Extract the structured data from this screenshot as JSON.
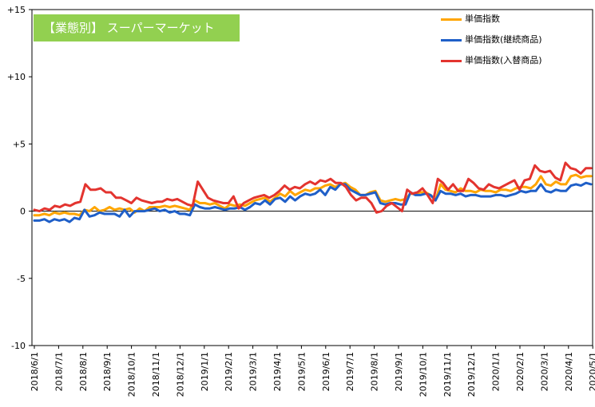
{
  "title": "【業態別】 スーパーマーケット",
  "chart_data": {
    "type": "line",
    "title": "【業態別】 スーパーマーケット",
    "xlabel": "",
    "ylabel": "",
    "ylim": [
      -10,
      15
    ],
    "yticks": [
      {
        "value": 15,
        "label": "+15"
      },
      {
        "value": 10,
        "label": "+10"
      },
      {
        "value": 5,
        "label": "+5"
      },
      {
        "value": 0,
        "label": "0"
      },
      {
        "value": -5,
        "label": "-5"
      },
      {
        "value": -10,
        "label": "-10"
      }
    ],
    "x_tick_labels": [
      "2018/6/1",
      "2018/7/1",
      "2018/8/1",
      "2018/9/1",
      "2018/10/1",
      "2018/11/1",
      "2018/12/1",
      "2019/1/1",
      "2019/2/1",
      "2019/3/1",
      "2019/4/1",
      "2019/5/1",
      "2019/6/1",
      "2019/7/1",
      "2019/8/1",
      "2019/9/1",
      "2019/10/1",
      "2019/11/1",
      "2019/12/1",
      "2020/1/1",
      "2020/2/1",
      "2020/3/1",
      "2020/4/1",
      "2020/5/1"
    ],
    "points_per_month": 4.3,
    "grid": false,
    "legend_position": "top-right",
    "series": [
      {
        "name": "単価指数",
        "color": "#ffa500",
        "values": [
          -0.3,
          -0.3,
          -0.2,
          -0.3,
          -0.1,
          -0.2,
          -0.1,
          -0.2,
          -0.2,
          -0.3,
          0.1,
          0.0,
          0.3,
          0.0,
          0.1,
          0.3,
          0.1,
          0.2,
          0.1,
          0.2,
          -0.1,
          0.2,
          0.0,
          0.3,
          0.3,
          0.3,
          0.4,
          0.3,
          0.4,
          0.3,
          0.2,
          0.1,
          0.8,
          0.6,
          0.6,
          0.5,
          0.6,
          0.4,
          0.2,
          0.5,
          0.4,
          0.5,
          0.4,
          0.6,
          0.8,
          0.9,
          1.0,
          0.7,
          1.0,
          1.3,
          1.1,
          1.5,
          1.2,
          1.4,
          1.6,
          1.5,
          1.7,
          1.7,
          1.9,
          2.0,
          1.8,
          2.0,
          2.1,
          1.8,
          1.6,
          1.2,
          1.2,
          1.4,
          1.5,
          0.8,
          0.7,
          0.8,
          0.9,
          0.8,
          0.9,
          1.3,
          1.3,
          1.4,
          1.4,
          1.2,
          0.8,
          2.0,
          1.6,
          1.5,
          1.4,
          1.7,
          1.5,
          1.5,
          1.4,
          1.6,
          1.5,
          1.5,
          1.4,
          1.6,
          1.6,
          1.5,
          1.7,
          1.8,
          1.8,
          1.7,
          2.0,
          2.6,
          2.0,
          1.9,
          2.2,
          2.0,
          2.0,
          2.6,
          2.7,
          2.5,
          2.6,
          2.6
        ]
      },
      {
        "name": "単価指数(継続商品)",
        "color": "#1f5fc8",
        "values": [
          -0.7,
          -0.7,
          -0.6,
          -0.8,
          -0.6,
          -0.7,
          -0.6,
          -0.8,
          -0.5,
          -0.6,
          0.1,
          -0.4,
          -0.3,
          -0.1,
          -0.2,
          -0.2,
          -0.2,
          -0.4,
          0.1,
          -0.4,
          0.0,
          0.0,
          0.0,
          0.1,
          0.2,
          0.0,
          0.1,
          -0.1,
          0.0,
          -0.2,
          -0.2,
          -0.3,
          0.5,
          0.3,
          0.2,
          0.2,
          0.3,
          0.2,
          0.1,
          0.2,
          0.2,
          0.3,
          0.1,
          0.3,
          0.6,
          0.5,
          0.8,
          0.5,
          0.9,
          1.0,
          0.7,
          1.1,
          0.8,
          1.1,
          1.3,
          1.2,
          1.3,
          1.6,
          1.2,
          1.8,
          1.6,
          2.0,
          2.0,
          1.6,
          1.4,
          1.2,
          1.2,
          1.3,
          1.4,
          0.6,
          0.5,
          0.6,
          0.6,
          0.5,
          0.5,
          1.4,
          1.2,
          1.2,
          1.3,
          1.2,
          0.8,
          1.5,
          1.3,
          1.3,
          1.2,
          1.3,
          1.1,
          1.2,
          1.2,
          1.1,
          1.1,
          1.1,
          1.2,
          1.2,
          1.1,
          1.2,
          1.3,
          1.5,
          1.4,
          1.5,
          1.5,
          2.0,
          1.5,
          1.4,
          1.6,
          1.5,
          1.5,
          1.9,
          2.0,
          1.9,
          2.1,
          2.0
        ]
      },
      {
        "name": "単価指数(入替商品)",
        "color": "#e3342f",
        "values": [
          0.1,
          0.0,
          0.2,
          0.1,
          0.4,
          0.3,
          0.5,
          0.4,
          0.6,
          0.7,
          2.0,
          1.6,
          1.6,
          1.7,
          1.4,
          1.4,
          1.0,
          1.0,
          0.8,
          0.6,
          1.0,
          0.8,
          0.7,
          0.6,
          0.7,
          0.7,
          0.9,
          0.8,
          0.9,
          0.7,
          0.5,
          0.4,
          2.2,
          1.6,
          1.0,
          0.8,
          0.7,
          0.6,
          0.6,
          1.1,
          0.2,
          0.6,
          0.8,
          1.0,
          1.1,
          1.2,
          1.0,
          1.2,
          1.5,
          1.9,
          1.6,
          1.8,
          1.7,
          2.0,
          2.2,
          2.0,
          2.3,
          2.2,
          2.4,
          2.1,
          2.1,
          1.8,
          1.2,
          0.8,
          1.0,
          1.0,
          0.6,
          -0.1,
          0.0,
          0.4,
          0.6,
          0.3,
          0.0,
          1.6,
          1.3,
          1.4,
          1.7,
          1.2,
          0.6,
          2.4,
          2.1,
          1.6,
          2.0,
          1.5,
          1.5,
          2.4,
          2.1,
          1.7,
          1.6,
          2.0,
          1.8,
          1.7,
          1.9,
          2.1,
          2.3,
          1.6,
          2.3,
          2.4,
          3.4,
          3.0,
          2.9,
          3.0,
          2.5,
          2.3,
          3.6,
          3.2,
          3.1,
          2.8,
          3.2,
          3.2
        ]
      }
    ]
  }
}
